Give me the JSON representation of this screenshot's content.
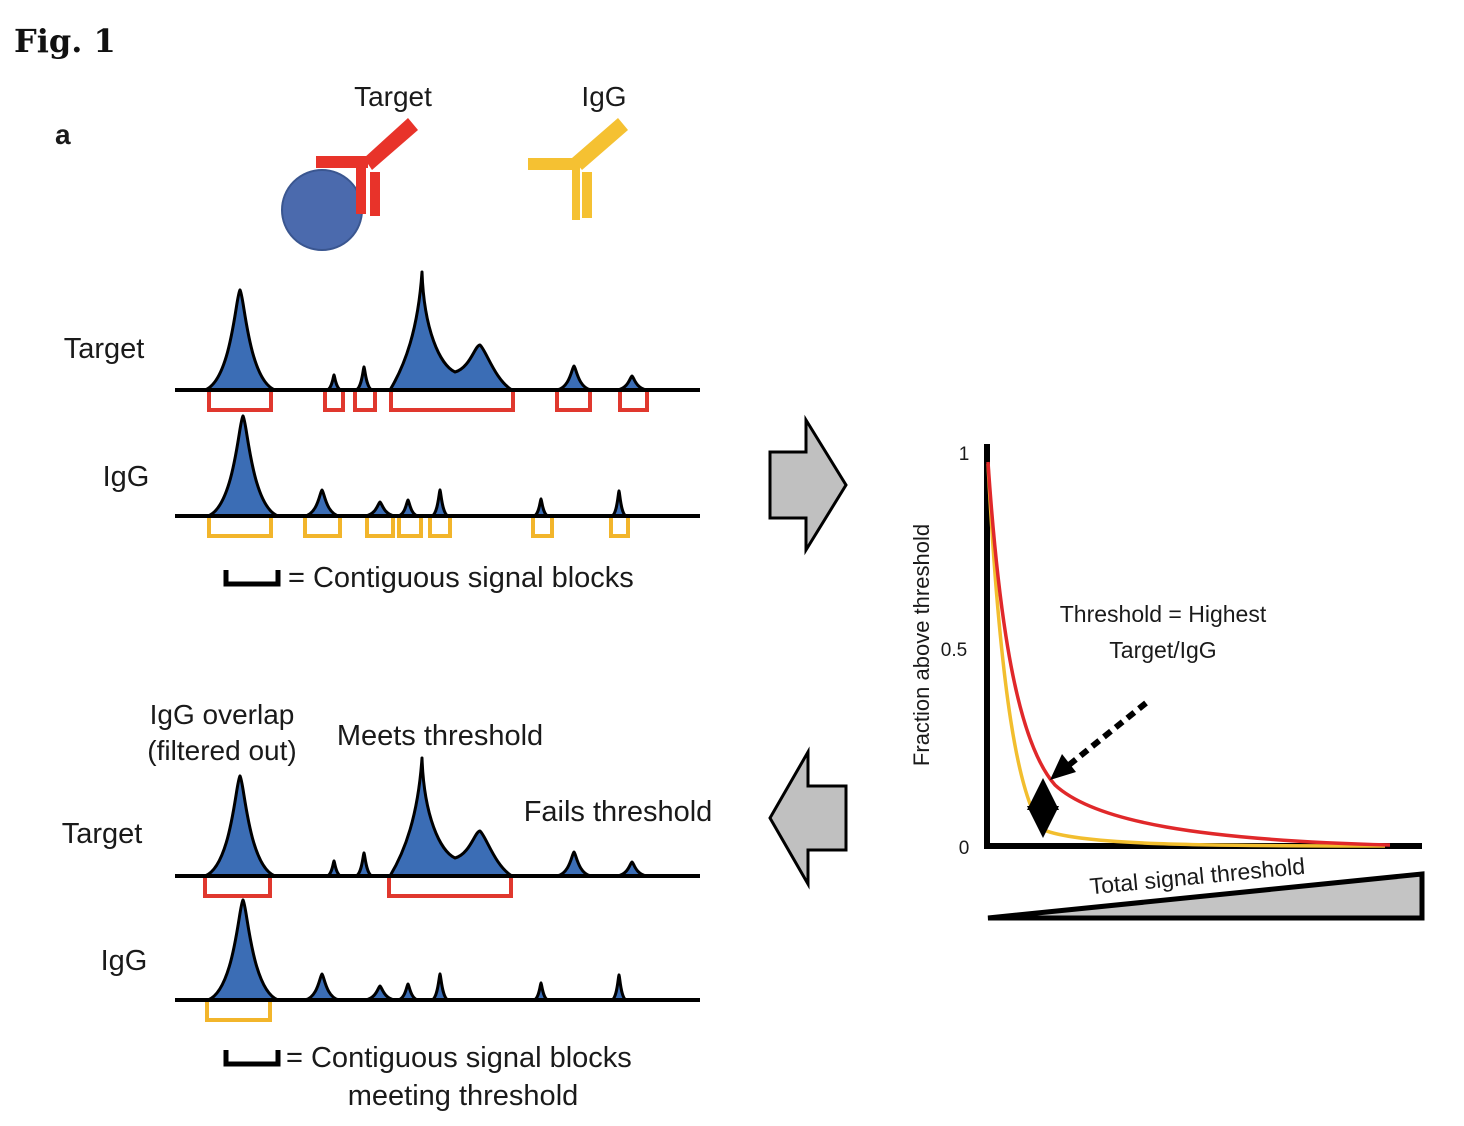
{
  "figure_label": "Fig. 1",
  "panel_label": "a",
  "antibody_labels": {
    "target": "Target",
    "igg": "IgG"
  },
  "colors": {
    "target_antibody": "#e8332a",
    "igg_antibody": "#f5c132",
    "protein": "#4b6aad",
    "peak_fill": "#3b6db5",
    "target_bracket": "#e0382e",
    "igg_bracket": "#f2b52b",
    "target_curve": "#e0282a",
    "igg_curve": "#f2be2e",
    "arrow_fill": "#c0c0c0"
  },
  "top_section": {
    "track_labels": {
      "target": "Target",
      "igg": "IgG"
    },
    "legend_text": "= Contiguous signal blocks"
  },
  "bottom_section": {
    "track_labels": {
      "target": "Target",
      "igg": "IgG"
    },
    "annotations": {
      "igg_overlap_line1": "IgG overlap",
      "igg_overlap_line2": "(filtered out)",
      "meets_threshold": "Meets threshold",
      "fails_threshold": "Fails threshold"
    },
    "legend_line1": "= Contiguous signal blocks",
    "legend_line2": "meeting threshold"
  },
  "plot": {
    "ylabel": "Fraction above threshold",
    "xlabel": "Total signal threshold",
    "y_ticks": [
      "1",
      "0.5",
      "0"
    ],
    "annotation_line1": "Threshold = Highest",
    "annotation_line2": "Target/IgG"
  }
}
